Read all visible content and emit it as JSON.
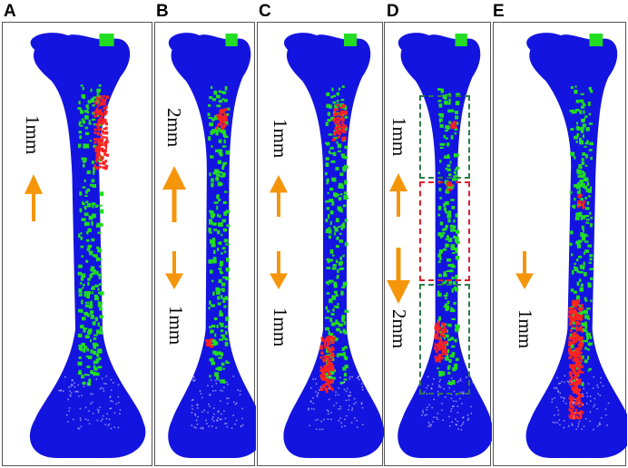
{
  "panels": [
    {
      "letter": "A",
      "top_label": "1mm",
      "bottom_label": ""
    },
    {
      "letter": "B",
      "top_label": "2mm",
      "bottom_label": "1mm"
    },
    {
      "letter": "C",
      "top_label": "1mm",
      "bottom_label": "1mm"
    },
    {
      "letter": "D",
      "top_label": "1mm",
      "bottom_label": "2mm"
    },
    {
      "letter": "E",
      "top_label": "",
      "bottom_label": "1mm"
    }
  ],
  "colors": {
    "bone": "#1414e0",
    "strain_mid": "#22dd22",
    "strain_high": "#ff2222",
    "arrow": "#f5960a",
    "box_green": "#2f7a4a",
    "box_red": "#e0202a",
    "frame": "#555555"
  }
}
